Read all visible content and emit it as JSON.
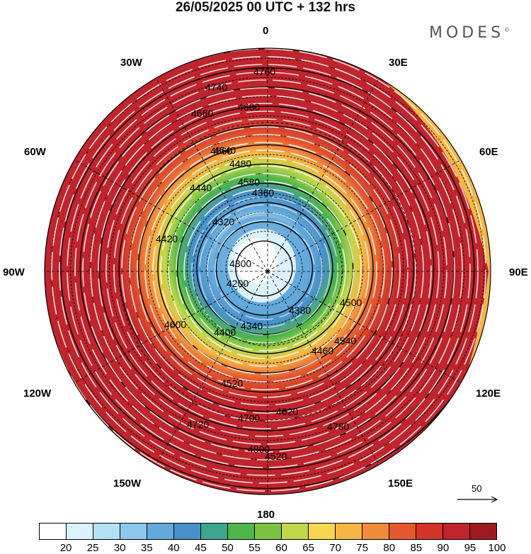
{
  "title": "26/05/2025  00 UTC  + 132 hrs",
  "brand": "MODES",
  "brand_mark": "©",
  "longitude_labels": {
    "lon_0": "0",
    "lon_30e": "30E",
    "lon_60e": "60E",
    "lon_90e": "90E",
    "lon_120e": "120E",
    "lon_150e": "150E",
    "lon_180": "180",
    "lon_150w": "150W",
    "lon_120w": "120W",
    "lon_90w": "90W",
    "lon_60w": "60W",
    "lon_30w": "30W"
  },
  "contour_labels": [
    "4760",
    "4740",
    "4680",
    "4660",
    "4640",
    "4580",
    "4560",
    "4480",
    "4440",
    "4360",
    "4420",
    "4320",
    "4200",
    "4300",
    "4340",
    "4380",
    "4400",
    "4460",
    "4500",
    "4520",
    "4540",
    "4600",
    "4620",
    "4700",
    "4720",
    "4780",
    "4800",
    "4520"
  ],
  "vector_reference": {
    "label": "50"
  },
  "colorbar": {
    "ticks": [
      "20",
      "25",
      "30",
      "35",
      "40",
      "45",
      "50",
      "55",
      "60",
      "65",
      "70",
      "75",
      "80",
      "85",
      "90",
      "95",
      "100"
    ],
    "colors": [
      "#ffffff",
      "#dbf1fc",
      "#b3e0f7",
      "#8cc8ee",
      "#63a9dc",
      "#4790c8",
      "#3ea58f",
      "#4db54a",
      "#7cc242",
      "#c0d84a",
      "#f7d651",
      "#f6b646",
      "#f08b3a",
      "#e4582e",
      "#d4342a",
      "#c0242c",
      "#9e1a22"
    ]
  }
}
